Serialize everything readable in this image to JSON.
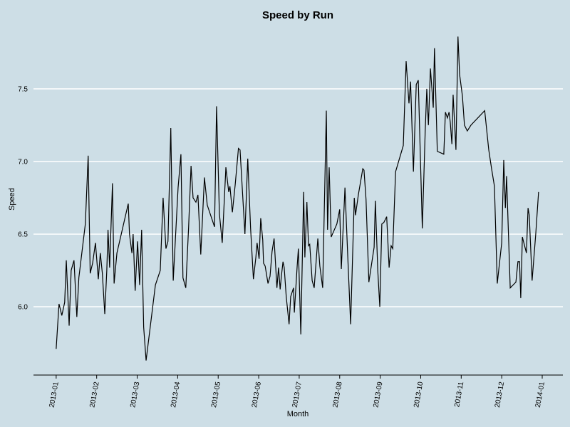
{
  "chart_data": {
    "type": "line",
    "title": "Speed by Run",
    "xlabel": "Month",
    "ylabel": "Speed",
    "color": "#000000",
    "grid": true,
    "xlim": [
      -0.56,
      12.51
    ],
    "xticks": [
      {
        "value": 0,
        "label": "2013-01"
      },
      {
        "value": 1,
        "label": "2013-02"
      },
      {
        "value": 2,
        "label": "2013-03"
      },
      {
        "value": 3,
        "label": "2013-04"
      },
      {
        "value": 4,
        "label": "2013-05"
      },
      {
        "value": 5,
        "label": "2013-06"
      },
      {
        "value": 6,
        "label": "2013-07"
      },
      {
        "value": 7,
        "label": "2013-08"
      },
      {
        "value": 8,
        "label": "2013-09"
      },
      {
        "value": 9,
        "label": "2013-10"
      },
      {
        "value": 10,
        "label": "2013-11"
      },
      {
        "value": 11,
        "label": "2013-12"
      },
      {
        "value": 12,
        "label": "2014-01"
      }
    ],
    "ylim": [
      5.53,
      7.95
    ],
    "yticks": [
      {
        "value": 6,
        "label": "6.0"
      },
      6.5,
      {
        "value": 7,
        "label": "7.0"
      },
      7.5
    ],
    "x": [
      0.0,
      0.07,
      0.14,
      0.21,
      0.25,
      0.32,
      0.37,
      0.44,
      0.51,
      0.56,
      0.72,
      0.79,
      0.84,
      0.9,
      0.97,
      1.04,
      1.09,
      1.14,
      1.2,
      1.25,
      1.28,
      1.32,
      1.39,
      1.43,
      1.5,
      1.78,
      1.81,
      1.87,
      1.9,
      1.95,
      2.01,
      2.06,
      2.11,
      2.16,
      2.22,
      2.45,
      2.57,
      2.64,
      2.71,
      2.76,
      2.83,
      2.89,
      3.01,
      3.08,
      3.13,
      3.2,
      3.27,
      3.33,
      3.38,
      3.45,
      3.5,
      3.57,
      3.66,
      3.73,
      3.91,
      3.96,
      4.03,
      4.1,
      4.19,
      4.26,
      4.29,
      4.35,
      4.42,
      4.5,
      4.54,
      4.66,
      4.73,
      4.8,
      4.87,
      4.93,
      4.96,
      5.01,
      5.05,
      5.1,
      5.12,
      5.16,
      5.23,
      5.28,
      5.33,
      5.38,
      5.45,
      5.49,
      5.53,
      5.56,
      5.6,
      5.63,
      5.68,
      5.75,
      5.79,
      5.86,
      5.88,
      5.95,
      5.98,
      6.04,
      6.11,
      6.14,
      6.19,
      6.23,
      6.26,
      6.32,
      6.37,
      6.46,
      6.51,
      6.58,
      6.67,
      6.7,
      6.74,
      6.79,
      6.93,
      7.0,
      7.04,
      7.13,
      7.2,
      7.27,
      7.36,
      7.39,
      7.46,
      7.57,
      7.6,
      7.65,
      7.72,
      7.85,
      7.88,
      7.94,
      7.99,
      8.04,
      8.09,
      8.16,
      8.22,
      8.27,
      8.31,
      8.38,
      8.57,
      8.64,
      8.71,
      8.75,
      8.82,
      8.89,
      8.94,
      9.04,
      9.11,
      9.15,
      9.19,
      9.24,
      9.31,
      9.34,
      9.41,
      9.57,
      9.61,
      9.66,
      9.7,
      9.73,
      9.77,
      9.8,
      9.87,
      9.92,
      9.96,
      10.03,
      10.08,
      10.15,
      10.24,
      10.58,
      10.68,
      10.75,
      10.82,
      10.89,
      11.0,
      11.05,
      11.09,
      11.12,
      11.21,
      11.35,
      11.4,
      11.44,
      11.47,
      11.51,
      11.61,
      11.65,
      11.68,
      11.75,
      11.84,
      11.91
    ],
    "values": [
      5.71,
      6.02,
      5.94,
      6.03,
      6.32,
      5.87,
      6.25,
      6.32,
      5.93,
      6.2,
      6.57,
      7.04,
      6.23,
      6.3,
      6.44,
      6.19,
      6.37,
      6.23,
      5.95,
      6.25,
      6.53,
      6.27,
      6.85,
      6.16,
      6.37,
      6.71,
      6.5,
      6.37,
      6.5,
      6.11,
      6.45,
      6.15,
      6.53,
      5.86,
      5.63,
      6.15,
      6.25,
      6.75,
      6.4,
      6.45,
      7.23,
      6.18,
      6.82,
      7.05,
      6.2,
      6.13,
      6.55,
      6.97,
      6.75,
      6.72,
      6.77,
      6.36,
      6.89,
      6.7,
      6.55,
      7.38,
      6.64,
      6.44,
      6.96,
      6.79,
      6.83,
      6.65,
      6.84,
      7.09,
      7.08,
      6.5,
      7.02,
      6.54,
      6.19,
      6.34,
      6.44,
      6.33,
      6.61,
      6.46,
      6.3,
      6.28,
      6.16,
      6.21,
      6.38,
      6.47,
      6.13,
      6.27,
      6.12,
      6.21,
      6.31,
      6.27,
      6.07,
      5.88,
      6.07,
      6.13,
      5.96,
      6.28,
      6.4,
      5.81,
      6.79,
      6.34,
      6.72,
      6.42,
      6.43,
      6.18,
      6.13,
      6.47,
      6.28,
      6.13,
      7.35,
      6.53,
      6.96,
      6.48,
      6.57,
      6.67,
      6.26,
      6.82,
      6.34,
      5.88,
      6.75,
      6.63,
      6.77,
      6.95,
      6.94,
      6.74,
      6.17,
      6.41,
      6.73,
      6.25,
      6.0,
      6.57,
      6.58,
      6.62,
      6.27,
      6.42,
      6.4,
      6.93,
      7.11,
      7.69,
      7.4,
      7.55,
      6.93,
      7.53,
      7.56,
      6.54,
      7.2,
      7.5,
      7.25,
      7.64,
      7.37,
      7.78,
      7.07,
      7.05,
      7.34,
      7.3,
      7.34,
      7.27,
      7.12,
      7.46,
      7.08,
      7.86,
      7.6,
      7.45,
      7.25,
      7.21,
      7.25,
      7.35,
      7.08,
      6.95,
      6.83,
      6.16,
      6.44,
      7.01,
      6.68,
      6.9,
      6.13,
      6.17,
      6.31,
      6.31,
      6.06,
      6.48,
      6.37,
      6.68,
      6.63,
      6.18,
      6.5,
      6.79
    ]
  }
}
